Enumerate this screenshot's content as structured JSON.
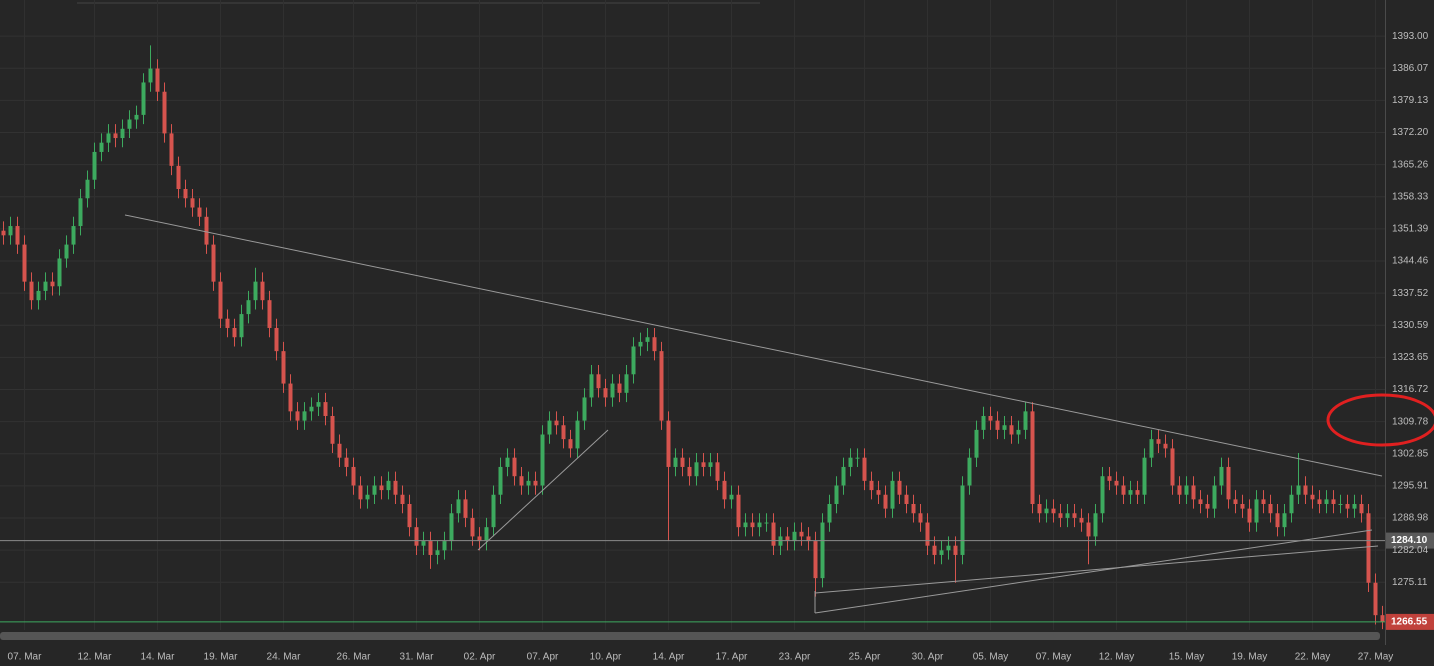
{
  "chart_data": {
    "type": "candlestick",
    "up_color": "#3daa5f",
    "down_color": "#d6544e",
    "grid": true,
    "ylim": [
      1264.8,
      1400.8
    ],
    "yticks": [
      {
        "value": 1393,
        "label": "1393.00"
      },
      1386.07,
      1379.13,
      {
        "value": 1372.2,
        "label": "1372.20"
      },
      1365.26,
      1358.33,
      1351.39,
      1344.46,
      1337.52,
      1330.59,
      1323.65,
      1316.72,
      1309.78,
      1302.85,
      1295.91,
      1288.98,
      1282.04,
      1275.11
    ],
    "price_lines": [
      {
        "value": 1284.1,
        "label": "1284.10",
        "color": "#8a8a8a",
        "box": "#5a5a5a"
      },
      {
        "value": 1266.55,
        "label": "1266.55",
        "color": "#3daa5f",
        "box": "#c0413b"
      }
    ],
    "x": [
      null,
      null,
      null,
      "07. Mar",
      null,
      null,
      null,
      null,
      null,
      null,
      null,
      null,
      null,
      "12. Mar",
      null,
      null,
      null,
      null,
      null,
      null,
      null,
      null,
      "14. Mar",
      null,
      null,
      null,
      null,
      null,
      null,
      null,
      null,
      "19. Mar",
      null,
      null,
      null,
      null,
      null,
      null,
      null,
      null,
      "24. Mar",
      null,
      null,
      null,
      null,
      null,
      null,
      null,
      null,
      null,
      "26. Mar",
      null,
      null,
      null,
      null,
      null,
      null,
      null,
      null,
      "31. Mar",
      null,
      null,
      null,
      null,
      null,
      null,
      null,
      null,
      "02. Apr",
      null,
      null,
      null,
      null,
      null,
      null,
      null,
      null,
      "07. Apr",
      null,
      null,
      null,
      null,
      null,
      null,
      null,
      null,
      "10. Apr",
      null,
      null,
      null,
      null,
      null,
      null,
      null,
      null,
      "14. Apr",
      null,
      null,
      null,
      null,
      null,
      null,
      null,
      null,
      "17. Apr",
      null,
      null,
      null,
      null,
      null,
      null,
      null,
      null,
      "23. Apr",
      null,
      null,
      null,
      null,
      null,
      null,
      null,
      null,
      null,
      "25. Apr",
      null,
      null,
      null,
      null,
      null,
      null,
      null,
      null,
      "30. Apr",
      null,
      null,
      null,
      null,
      null,
      null,
      null,
      null,
      "05. May",
      null,
      null,
      null,
      null,
      null,
      null,
      null,
      null,
      "07. May",
      null,
      null,
      null,
      null,
      null,
      null,
      null,
      null,
      "12. May",
      null,
      null,
      null,
      null,
      null,
      null,
      null,
      null,
      null,
      "15. May",
      null,
      null,
      null,
      null,
      null,
      null,
      null,
      null,
      "19. May",
      null,
      null,
      null,
      null,
      null,
      null,
      null,
      null,
      "22. May",
      null,
      null,
      null,
      null,
      null,
      null,
      null,
      null,
      "27. May",
      null
    ],
    "open": [
      1351,
      1350,
      1352,
      1348,
      1340,
      1336,
      1338,
      1340,
      1339,
      1345,
      1348,
      1352,
      1358,
      1362,
      1368,
      1370,
      1372,
      1371,
      1373,
      1375,
      1376,
      1383,
      1386,
      1381,
      1372,
      1365,
      1360,
      1358,
      1356,
      1354,
      1348,
      1340,
      1332,
      1330,
      1328,
      1333,
      1336,
      1340,
      1336,
      1330,
      1325,
      1318,
      1312,
      1310,
      1312,
      1313,
      1314,
      1311,
      1305,
      1302,
      1300,
      1296,
      1293,
      1294,
      1296,
      1295,
      1297,
      1294,
      1292,
      1287,
      1283,
      1284,
      1281,
      1282,
      1284,
      1290,
      1293,
      1289,
      1285,
      1284,
      1287,
      1294,
      1300,
      1302,
      1298,
      1296,
      1297,
      1296,
      1307,
      1310,
      1309,
      1306,
      1304,
      1310,
      1315,
      1320,
      1317,
      1315,
      1318,
      1316,
      1320,
      1326,
      1327,
      1328,
      1325,
      1310,
      1300,
      1302,
      1300,
      1298,
      1301,
      1300,
      1301,
      1297,
      1293,
      1294,
      1287,
      1288,
      1287,
      1288,
      1288,
      1283,
      1285,
      1284,
      1286,
      1285,
      1284,
      1276,
      1288,
      1292,
      1296,
      1300,
      1302,
      1302,
      1297,
      1295,
      1294,
      1291,
      1297,
      1294,
      1292,
      1290,
      1288,
      1283,
      1281,
      1282,
      1283,
      1281,
      1296,
      1302,
      1308,
      1311,
      1310,
      1308,
      1309,
      1307,
      1308,
      1312,
      1292,
      1290,
      1291,
      1290,
      1289,
      1290,
      1289,
      1288,
      1285,
      1290,
      1298,
      1297,
      1296,
      1294,
      1295,
      1294,
      1302,
      1306,
      1305,
      1304,
      1296,
      1294,
      1296,
      1293,
      1292,
      1291,
      1296,
      1300,
      1293,
      1292,
      1291,
      1288,
      1293,
      1292,
      1290,
      1287,
      1290,
      1294,
      1296,
      1294,
      1293,
      1292,
      1293,
      1292,
      1292,
      1291,
      1292,
      1290,
      1275,
      1268
    ],
    "high": [
      1353,
      1354,
      1354,
      1350,
      1342,
      1340,
      1342,
      1342,
      1347,
      1350,
      1354,
      1360,
      1364,
      1370,
      1372,
      1374,
      1374,
      1375,
      1377,
      1378,
      1385,
      1391,
      1388,
      1383,
      1374,
      1367,
      1362,
      1360,
      1358,
      1356,
      1350,
      1342,
      1334,
      1332,
      1335,
      1338,
      1343,
      1342,
      1338,
      1332,
      1327,
      1320,
      1314,
      1314,
      1315,
      1316,
      1316,
      1313,
      1307,
      1304,
      1302,
      1298,
      1296,
      1298,
      1298,
      1299,
      1299,
      1296,
      1294,
      1289,
      1286,
      1286,
      1284,
      1286,
      1292,
      1295,
      1295,
      1291,
      1287,
      1289,
      1296,
      1302,
      1304,
      1304,
      1300,
      1299,
      1299,
      1309,
      1312,
      1312,
      1311,
      1308,
      1312,
      1317,
      1322,
      1322,
      1319,
      1320,
      1320,
      1322,
      1328,
      1329,
      1330,
      1330,
      1327,
      1312,
      1304,
      1304,
      1302,
      1303,
      1303,
      1303,
      1303,
      1299,
      1296,
      1296,
      1290,
      1290,
      1290,
      1290,
      1290,
      1287,
      1287,
      1288,
      1288,
      1287,
      1286,
      1290,
      1294,
      1298,
      1302,
      1304,
      1304,
      1304,
      1299,
      1297,
      1296,
      1299,
      1299,
      1296,
      1294,
      1292,
      1290,
      1285,
      1284,
      1285,
      1285,
      1298,
      1304,
      1310,
      1313,
      1313,
      1312,
      1311,
      1311,
      1310,
      1314,
      1314,
      1294,
      1293,
      1293,
      1292,
      1292,
      1292,
      1291,
      1290,
      1292,
      1300,
      1300,
      1299,
      1298,
      1297,
      1297,
      1304,
      1308,
      1308,
      1307,
      1306,
      1298,
      1298,
      1298,
      1295,
      1294,
      1298,
      1302,
      1302,
      1295,
      1294,
      1293,
      1295,
      1295,
      1294,
      1292,
      1292,
      1296,
      1303,
      1298,
      1296,
      1295,
      1295,
      1295,
      1294,
      1294,
      1294,
      1294,
      1292,
      1277,
      1270
    ],
    "low": [
      1348,
      1348,
      1346,
      1338,
      1334,
      1334,
      1336,
      1337,
      1337,
      1343,
      1346,
      1350,
      1356,
      1360,
      1366,
      1368,
      1369,
      1369,
      1371,
      1373,
      1374,
      1381,
      1379,
      1370,
      1363,
      1358,
      1356,
      1354,
      1352,
      1346,
      1338,
      1330,
      1328,
      1326,
      1326,
      1331,
      1334,
      1334,
      1328,
      1323,
      1316,
      1310,
      1308,
      1308,
      1310,
      1311,
      1309,
      1303,
      1300,
      1298,
      1294,
      1291,
      1291,
      1292,
      1293,
      1293,
      1292,
      1290,
      1285,
      1281,
      1281,
      1278,
      1279,
      1280,
      1282,
      1288,
      1287,
      1283,
      1282,
      1282,
      1285,
      1292,
      1298,
      1296,
      1294,
      1294,
      1294,
      1294,
      1305,
      1307,
      1304,
      1302,
      1302,
      1308,
      1313,
      1315,
      1313,
      1313,
      1314,
      1314,
      1318,
      1324,
      1325,
      1323,
      1308,
      1284,
      1298,
      1298,
      1296,
      1296,
      1298,
      1298,
      1295,
      1291,
      1291,
      1285,
      1285,
      1285,
      1285,
      1286,
      1281,
      1281,
      1282,
      1282,
      1283,
      1282,
      1272,
      1274,
      1286,
      1290,
      1294,
      1298,
      1300,
      1295,
      1293,
      1292,
      1289,
      1289,
      1292,
      1290,
      1288,
      1286,
      1281,
      1279,
      1279,
      1280,
      1275,
      1279,
      1294,
      1300,
      1306,
      1308,
      1306,
      1306,
      1305,
      1305,
      1306,
      1290,
      1288,
      1288,
      1288,
      1287,
      1287,
      1287,
      1286,
      1279,
      1283,
      1288,
      1295,
      1294,
      1292,
      1292,
      1292,
      1292,
      1300,
      1303,
      1302,
      1294,
      1292,
      1292,
      1291,
      1290,
      1289,
      1289,
      1294,
      1291,
      1290,
      1289,
      1286,
      1286,
      1290,
      1288,
      1285,
      1285,
      1288,
      1292,
      1292,
      1291,
      1290,
      1290,
      1290,
      1290,
      1289,
      1289,
      1288,
      1273,
      1266,
      1265
    ],
    "close": [
      1350,
      1352,
      1348,
      1340,
      1336,
      1338,
      1340,
      1339,
      1345,
      1348,
      1352,
      1358,
      1362,
      1368,
      1370,
      1372,
      1371,
      1373,
      1375,
      1376,
      1383,
      1386,
      1381,
      1372,
      1365,
      1360,
      1358,
      1356,
      1354,
      1348,
      1340,
      1332,
      1330,
      1328,
      1333,
      1336,
      1340,
      1336,
      1330,
      1325,
      1318,
      1312,
      1310,
      1312,
      1313,
      1314,
      1311,
      1305,
      1302,
      1300,
      1296,
      1293,
      1294,
      1296,
      1295,
      1297,
      1294,
      1292,
      1287,
      1283,
      1284,
      1281,
      1282,
      1284,
      1290,
      1293,
      1289,
      1285,
      1284,
      1287,
      1294,
      1300,
      1302,
      1298,
      1296,
      1297,
      1296,
      1307,
      1310,
      1309,
      1306,
      1304,
      1310,
      1315,
      1320,
      1317,
      1315,
      1318,
      1316,
      1320,
      1326,
      1327,
      1328,
      1325,
      1310,
      1300,
      1302,
      1300,
      1298,
      1301,
      1300,
      1301,
      1297,
      1293,
      1294,
      1287,
      1288,
      1287,
      1288,
      1288,
      1283,
      1285,
      1284,
      1286,
      1285,
      1284,
      1276,
      1288,
      1292,
      1296,
      1300,
      1302,
      1302,
      1297,
      1295,
      1294,
      1291,
      1297,
      1294,
      1292,
      1290,
      1288,
      1283,
      1281,
      1282,
      1283,
      1281,
      1296,
      1302,
      1308,
      1311,
      1310,
      1308,
      1309,
      1307,
      1308,
      1312,
      1292,
      1290,
      1291,
      1290,
      1289,
      1290,
      1289,
      1288,
      1285,
      1290,
      1298,
      1297,
      1296,
      1294,
      1295,
      1294,
      1302,
      1306,
      1305,
      1304,
      1296,
      1294,
      1296,
      1293,
      1292,
      1291,
      1296,
      1300,
      1293,
      1292,
      1291,
      1288,
      1293,
      1292,
      1290,
      1287,
      1290,
      1294,
      1296,
      1294,
      1293,
      1292,
      1293,
      1292,
      1292,
      1291,
      1292,
      1290,
      1275,
      1268,
      1266.55
    ]
  }
}
